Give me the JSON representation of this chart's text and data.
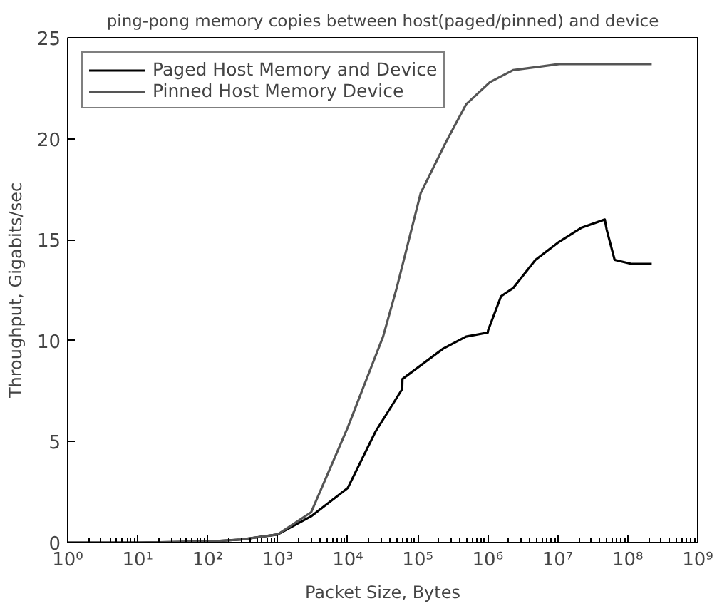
{
  "chart_data": {
    "type": "line",
    "title": "ping-pong memory copies between host(paged/pinned) and device",
    "xlabel": "Packet Size, Bytes",
    "ylabel": "Throughput, Gigabits/sec",
    "log": "x",
    "xlim": [
      1,
      1000000000
    ],
    "ylim": [
      0,
      25
    ],
    "xticks": [
      {
        "value": 1,
        "label": "10⁰"
      },
      {
        "value": 10,
        "label": "10¹"
      },
      {
        "value": 100,
        "label": "10²"
      },
      {
        "value": 1000,
        "label": "10³"
      },
      {
        "value": 10000,
        "label": "10⁴"
      },
      {
        "value": 100000,
        "label": "10⁵"
      },
      {
        "value": 1000000,
        "label": "10⁶"
      },
      {
        "value": 10000000,
        "label": "10⁷"
      },
      {
        "value": 100000000,
        "label": "10⁸"
      },
      {
        "value": 1000000000,
        "label": "10⁹"
      }
    ],
    "yticks": [
      0,
      5,
      10,
      15,
      20,
      25
    ],
    "grid": false,
    "legend": "top left",
    "line_style": "solid",
    "marker": "none",
    "series": [
      {
        "name": "Paged Host Memory and Device",
        "color": "#000000",
        "x": [
          1,
          10,
          100,
          300,
          1000,
          3000,
          10000,
          25000,
          60000,
          60500,
          230000,
          490000,
          1000000,
          1010000,
          1550000,
          2300000,
          4800000,
          10500000,
          22000000,
          47000000,
          50000000,
          65000000,
          115000000,
          220000000
        ],
        "values": [
          0,
          0,
          0.05,
          0.15,
          0.4,
          1.3,
          2.7,
          5.5,
          7.6,
          8.1,
          9.6,
          10.2,
          10.4,
          10.5,
          12.2,
          12.6,
          14.0,
          14.9,
          15.6,
          16.0,
          15.5,
          14.0,
          13.8,
          13.8
        ]
      },
      {
        "name": "Pinned Host Memory Device",
        "color": "#555555",
        "x": [
          1,
          10,
          100,
          300,
          1000,
          3000,
          10000,
          32000,
          50000,
          110000,
          250000,
          490000,
          1070000,
          2300000,
          10500000,
          220000000
        ],
        "values": [
          0,
          0,
          0.05,
          0.15,
          0.4,
          1.5,
          5.7,
          10.2,
          12.6,
          17.3,
          19.8,
          21.7,
          22.8,
          23.4,
          23.7,
          23.7
        ]
      }
    ]
  }
}
